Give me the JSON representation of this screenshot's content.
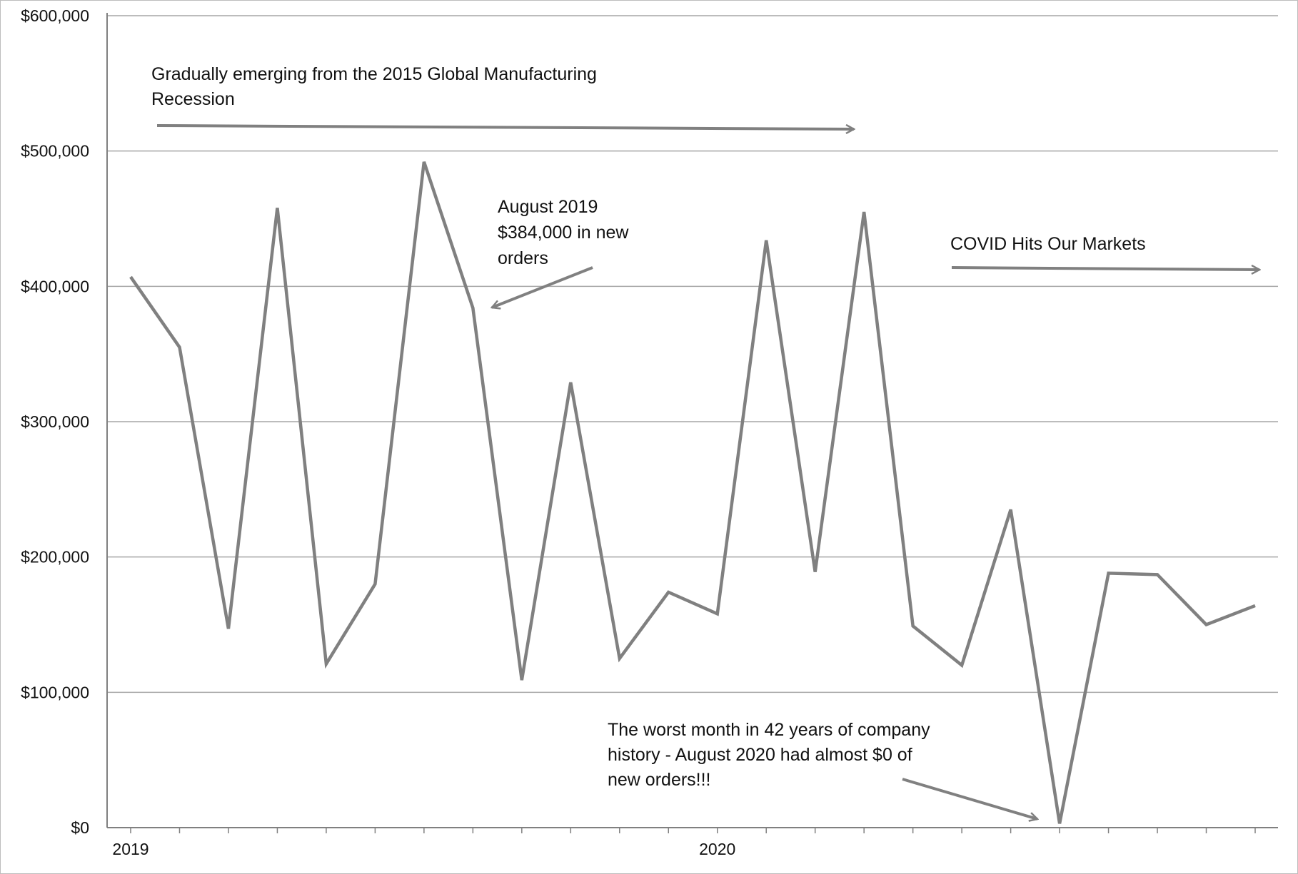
{
  "chart_data": {
    "type": "line",
    "title": "",
    "xlabel": "",
    "ylabel": "",
    "ylim": [
      0,
      600000
    ],
    "yticks": [
      0,
      100000,
      200000,
      300000,
      400000,
      500000,
      600000
    ],
    "ytick_labels": [
      "$0",
      "$100,000",
      "$200,000",
      "$300,000",
      "$400,000",
      "$500,000",
      "$600,000"
    ],
    "x_labels": [
      {
        "label": "2019",
        "month_index": 0
      },
      {
        "label": "2020",
        "month_index": 12
      }
    ],
    "grid": true,
    "line_color": "#808080",
    "series": [
      {
        "values": [
          407000,
          355000,
          147000,
          458000,
          121000,
          180000,
          492000,
          384000,
          109000,
          329000,
          125000,
          174000,
          158000,
          434000,
          189000,
          455000,
          149000,
          120000,
          235000,
          3000,
          188000,
          187000,
          150000,
          164000
        ]
      }
    ],
    "annotations": [
      {
        "text": "Gradually emerging from the 2015 Global Manufacturing Recession",
        "lines": [
          "Gradually emerging from the 2015 Global Manufacturing",
          "Recession"
        ]
      },
      {
        "text": "August 2019 $384,000 in new orders",
        "lines": [
          "August 2019",
          "$384,000 in new",
          "orders"
        ]
      },
      {
        "text": "COVID Hits Our Markets",
        "lines": [
          "COVID Hits Our Markets"
        ]
      },
      {
        "text": "The worst month in 42 years of company history - August 2020 had almost $0 of new orders!!!",
        "lines": [
          "The worst month in 42 years of company",
          "history - August 2020 had almost $0 of",
          "new orders!!!"
        ]
      }
    ]
  }
}
